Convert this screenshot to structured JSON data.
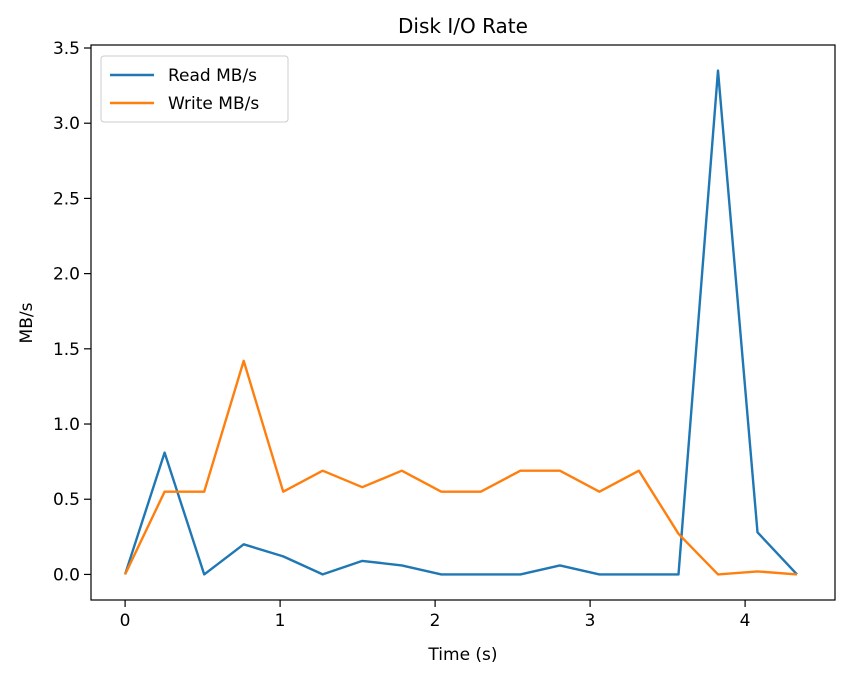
{
  "chart_data": {
    "type": "line",
    "title": "Disk I/O Rate",
    "xlabel": "Time (s)",
    "ylabel": "MB/s",
    "xlim": [
      -0.22,
      4.58
    ],
    "ylim": [
      -0.17,
      3.52
    ],
    "xticks": [
      0,
      1,
      2,
      3,
      4
    ],
    "xtick_labels": [
      "0",
      "1",
      "2",
      "3",
      "4"
    ],
    "yticks": [
      0.0,
      0.5,
      1.0,
      1.5,
      2.0,
      2.5,
      3.0,
      3.5
    ],
    "ytick_labels": [
      "0.0",
      "0.5",
      "1.0",
      "1.5",
      "2.0",
      "2.5",
      "3.0",
      "3.5"
    ],
    "grid": false,
    "legend_position": "top-left",
    "x": [
      0,
      0.255,
      0.51,
      0.765,
      1.02,
      1.275,
      1.53,
      1.785,
      2.04,
      2.295,
      2.55,
      2.805,
      3.06,
      3.315,
      3.57,
      3.825,
      4.08,
      4.335
    ],
    "series": [
      {
        "name": "Read MB/s",
        "color": "#1f77b4",
        "values": [
          0.0,
          0.81,
          0.0,
          0.2,
          0.12,
          0.0,
          0.09,
          0.06,
          0.0,
          0.0,
          0.0,
          0.06,
          0.0,
          0.0,
          0.0,
          3.35,
          0.28,
          0.0
        ]
      },
      {
        "name": "Write MB/s",
        "color": "#ff7f0e",
        "values": [
          0.0,
          0.55,
          0.55,
          1.42,
          0.55,
          0.69,
          0.58,
          0.69,
          0.55,
          0.55,
          0.69,
          0.69,
          0.55,
          0.69,
          0.27,
          0.0,
          0.02,
          0.0
        ]
      }
    ]
  }
}
